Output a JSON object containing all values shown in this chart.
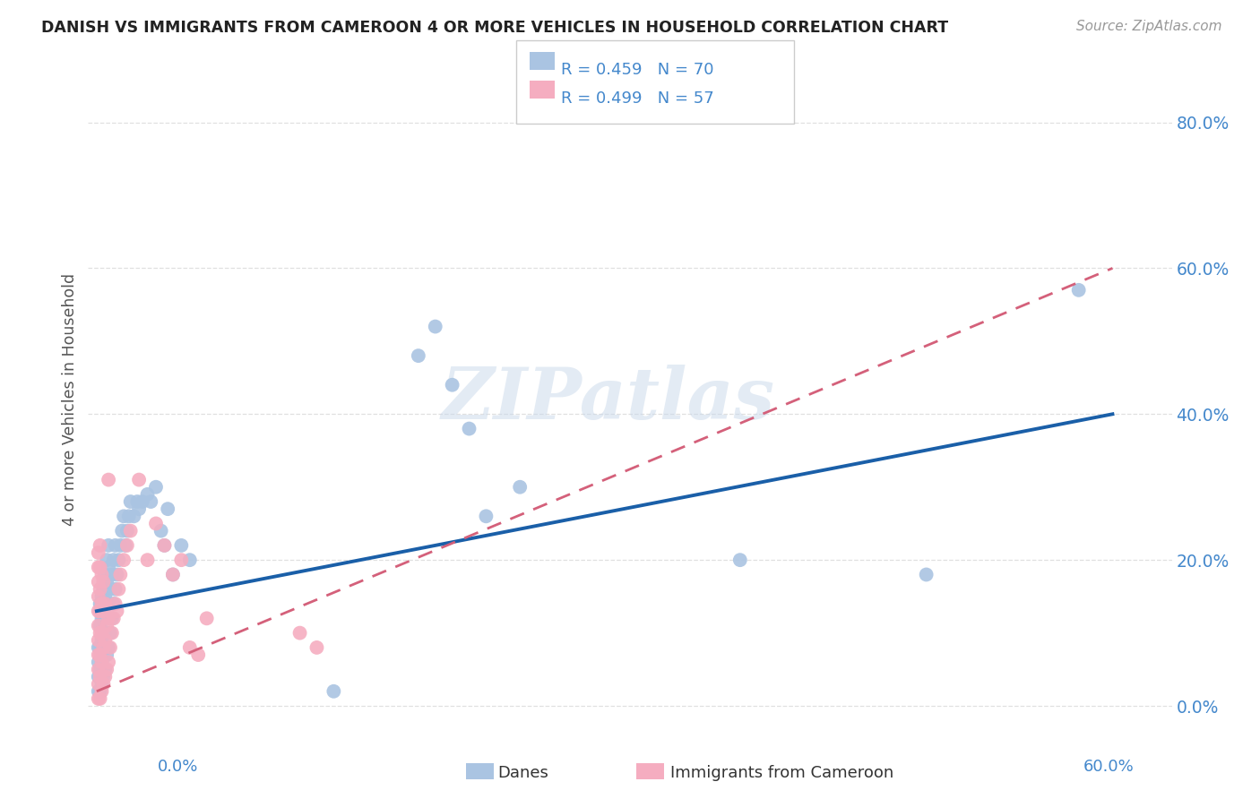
{
  "title": "DANISH VS IMMIGRANTS FROM CAMEROON 4 OR MORE VEHICLES IN HOUSEHOLD CORRELATION CHART",
  "source": "Source: ZipAtlas.com",
  "ylabel": "4 or more Vehicles in Household",
  "danes_R": 0.459,
  "danes_N": 70,
  "cameroon_R": 0.499,
  "cameroon_N": 57,
  "xlim": [
    -0.005,
    0.635
  ],
  "ylim": [
    -0.04,
    0.88
  ],
  "ytick_vals": [
    0.0,
    0.2,
    0.4,
    0.6,
    0.8
  ],
  "xtick_vals": [
    0.0,
    0.1,
    0.2,
    0.3,
    0.4,
    0.5,
    0.6
  ],
  "watermark": "ZIPatlas",
  "danes_color": "#aac4e2",
  "cameroon_color": "#f5adc0",
  "danes_line_color": "#1a5fa8",
  "cameroon_line_color": "#d4607a",
  "danes_line_x0": 0.0,
  "danes_line_y0": 0.13,
  "danes_line_x1": 0.6,
  "danes_line_y1": 0.4,
  "cameroon_line_x0": 0.0,
  "cameroon_line_y0": 0.02,
  "cameroon_line_x1": 0.6,
  "cameroon_line_y1": 0.6,
  "danes_scatter": [
    [
      0.001,
      0.02
    ],
    [
      0.001,
      0.04
    ],
    [
      0.001,
      0.06
    ],
    [
      0.001,
      0.08
    ],
    [
      0.002,
      0.02
    ],
    [
      0.002,
      0.05
    ],
    [
      0.002,
      0.08
    ],
    [
      0.002,
      0.11
    ],
    [
      0.002,
      0.14
    ],
    [
      0.003,
      0.03
    ],
    [
      0.003,
      0.06
    ],
    [
      0.003,
      0.09
    ],
    [
      0.003,
      0.12
    ],
    [
      0.003,
      0.15
    ],
    [
      0.004,
      0.04
    ],
    [
      0.004,
      0.08
    ],
    [
      0.004,
      0.12
    ],
    [
      0.004,
      0.16
    ],
    [
      0.005,
      0.05
    ],
    [
      0.005,
      0.1
    ],
    [
      0.005,
      0.15
    ],
    [
      0.005,
      0.18
    ],
    [
      0.006,
      0.07
    ],
    [
      0.006,
      0.12
    ],
    [
      0.006,
      0.17
    ],
    [
      0.006,
      0.2
    ],
    [
      0.007,
      0.08
    ],
    [
      0.007,
      0.14
    ],
    [
      0.007,
      0.19
    ],
    [
      0.007,
      0.22
    ],
    [
      0.008,
      0.1
    ],
    [
      0.008,
      0.16
    ],
    [
      0.009,
      0.12
    ],
    [
      0.009,
      0.18
    ],
    [
      0.01,
      0.14
    ],
    [
      0.01,
      0.2
    ],
    [
      0.011,
      0.16
    ],
    [
      0.011,
      0.22
    ],
    [
      0.012,
      0.18
    ],
    [
      0.013,
      0.2
    ],
    [
      0.014,
      0.22
    ],
    [
      0.015,
      0.24
    ],
    [
      0.016,
      0.26
    ],
    [
      0.017,
      0.22
    ],
    [
      0.018,
      0.24
    ],
    [
      0.019,
      0.26
    ],
    [
      0.02,
      0.28
    ],
    [
      0.022,
      0.26
    ],
    [
      0.024,
      0.28
    ],
    [
      0.025,
      0.27
    ],
    [
      0.027,
      0.28
    ],
    [
      0.03,
      0.29
    ],
    [
      0.032,
      0.28
    ],
    [
      0.035,
      0.3
    ],
    [
      0.038,
      0.24
    ],
    [
      0.04,
      0.22
    ],
    [
      0.042,
      0.27
    ],
    [
      0.045,
      0.18
    ],
    [
      0.05,
      0.22
    ],
    [
      0.055,
      0.2
    ],
    [
      0.14,
      0.02
    ],
    [
      0.19,
      0.48
    ],
    [
      0.2,
      0.52
    ],
    [
      0.21,
      0.44
    ],
    [
      0.22,
      0.38
    ],
    [
      0.23,
      0.26
    ],
    [
      0.25,
      0.3
    ],
    [
      0.38,
      0.2
    ],
    [
      0.49,
      0.18
    ],
    [
      0.58,
      0.57
    ]
  ],
  "cameroon_scatter": [
    [
      0.001,
      0.01
    ],
    [
      0.001,
      0.03
    ],
    [
      0.001,
      0.05
    ],
    [
      0.001,
      0.07
    ],
    [
      0.001,
      0.09
    ],
    [
      0.001,
      0.11
    ],
    [
      0.001,
      0.13
    ],
    [
      0.001,
      0.15
    ],
    [
      0.001,
      0.17
    ],
    [
      0.001,
      0.19
    ],
    [
      0.001,
      0.21
    ],
    [
      0.002,
      0.01
    ],
    [
      0.002,
      0.04
    ],
    [
      0.002,
      0.07
    ],
    [
      0.002,
      0.1
    ],
    [
      0.002,
      0.13
    ],
    [
      0.002,
      0.16
    ],
    [
      0.002,
      0.19
    ],
    [
      0.002,
      0.22
    ],
    [
      0.003,
      0.02
    ],
    [
      0.003,
      0.06
    ],
    [
      0.003,
      0.1
    ],
    [
      0.003,
      0.14
    ],
    [
      0.003,
      0.18
    ],
    [
      0.004,
      0.03
    ],
    [
      0.004,
      0.08
    ],
    [
      0.004,
      0.13
    ],
    [
      0.004,
      0.17
    ],
    [
      0.005,
      0.04
    ],
    [
      0.005,
      0.09
    ],
    [
      0.005,
      0.14
    ],
    [
      0.006,
      0.05
    ],
    [
      0.006,
      0.11
    ],
    [
      0.007,
      0.06
    ],
    [
      0.007,
      0.12
    ],
    [
      0.008,
      0.08
    ],
    [
      0.009,
      0.1
    ],
    [
      0.01,
      0.12
    ],
    [
      0.011,
      0.14
    ],
    [
      0.012,
      0.13
    ],
    [
      0.013,
      0.16
    ],
    [
      0.014,
      0.18
    ],
    [
      0.016,
      0.2
    ],
    [
      0.018,
      0.22
    ],
    [
      0.02,
      0.24
    ],
    [
      0.025,
      0.31
    ],
    [
      0.03,
      0.2
    ],
    [
      0.035,
      0.25
    ],
    [
      0.04,
      0.22
    ],
    [
      0.045,
      0.18
    ],
    [
      0.05,
      0.2
    ],
    [
      0.055,
      0.08
    ],
    [
      0.06,
      0.07
    ],
    [
      0.065,
      0.12
    ],
    [
      0.12,
      0.1
    ],
    [
      0.13,
      0.08
    ],
    [
      0.007,
      0.31
    ]
  ],
  "background_color": "#ffffff",
  "grid_color": "#e0e0e0",
  "axis_label_color": "#4488cc",
  "tick_label_color": "#4488cc",
  "ylabel_color": "#555555"
}
